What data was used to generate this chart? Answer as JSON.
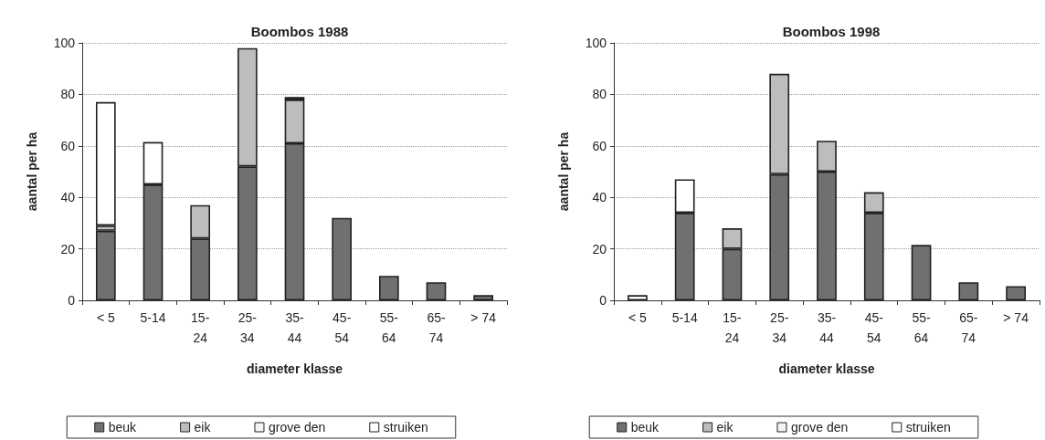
{
  "chart_data": [
    {
      "type": "bar",
      "title": "Boombos 1988",
      "xlabel": "diameter klasse",
      "ylabel": "aantal per ha",
      "stacked": true,
      "categories": [
        "< 5",
        "5-14",
        "15-\n24",
        "25-\n34",
        "35-\n44",
        "45-\n54",
        "55-\n64",
        "65-\n74",
        "> 74"
      ],
      "series": [
        {
          "name": "beuk",
          "color": "#707070",
          "values": [
            27,
            45,
            24,
            52,
            61,
            32,
            9.5,
            7,
            2
          ]
        },
        {
          "name": "eik",
          "color": "#bdbdbd",
          "values": [
            2,
            null,
            13,
            46,
            17,
            null,
            null,
            null,
            null
          ]
        },
        {
          "name": "grove den",
          "color": "#f4f4f4",
          "values": [
            null,
            null,
            null,
            null,
            1,
            null,
            null,
            null,
            null
          ]
        },
        {
          "name": "struiken",
          "color": "#ffffff",
          "values": [
            48,
            16.5,
            null,
            null,
            null,
            null,
            null,
            null,
            null
          ]
        }
      ],
      "ylim": [
        0,
        100
      ],
      "yticks": [
        0,
        20,
        40,
        60,
        80,
        100
      ],
      "grid": "y",
      "legend": "bottom"
    },
    {
      "type": "bar",
      "title": "Boombos 1998",
      "xlabel": "diameter klasse",
      "ylabel": "aantal per ha",
      "stacked": true,
      "categories": [
        "< 5",
        "5-14",
        "15-\n24",
        "25-\n34",
        "35-\n44",
        "45-\n54",
        "55-\n64",
        "65-\n74",
        "> 74"
      ],
      "series": [
        {
          "name": "beuk",
          "color": "#707070",
          "values": [
            null,
            34,
            20,
            49,
            50,
            34,
            21.5,
            7,
            5.5
          ]
        },
        {
          "name": "eik",
          "color": "#bdbdbd",
          "values": [
            null,
            null,
            8,
            39,
            12,
            8,
            null,
            null,
            null
          ]
        },
        {
          "name": "grove den",
          "color": "#f4f4f4",
          "values": [
            null,
            null,
            null,
            null,
            null,
            null,
            null,
            null,
            null
          ]
        },
        {
          "name": "struiken",
          "color": "#ffffff",
          "values": [
            2,
            13,
            null,
            null,
            null,
            null,
            null,
            null,
            null
          ]
        }
      ],
      "ylim": [
        0,
        100
      ],
      "yticks": [
        0,
        20,
        40,
        60,
        80,
        100
      ],
      "grid": "y",
      "legend": "bottom"
    }
  ]
}
